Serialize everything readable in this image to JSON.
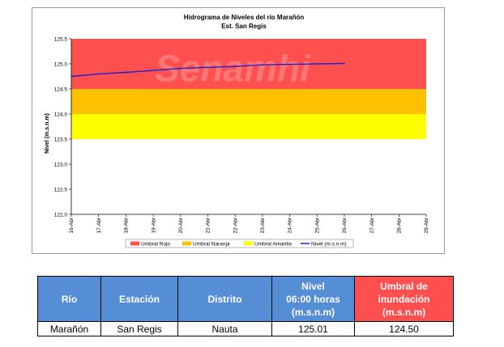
{
  "chart_data": {
    "type": "line",
    "title": "Hidrograma de Niveles del río Marañón",
    "subtitle": "Est. San Regis",
    "ylabel": "Nivel (m.s.n.m)",
    "watermark": "Senamhi",
    "ylim": [
      122.0,
      125.5
    ],
    "y_ticks": [
      "125.5",
      "125.0",
      "124.5",
      "124.0",
      "123.5",
      "123.0",
      "122.5",
      "122.0"
    ],
    "categories": [
      "16-Abr",
      "17-Abr",
      "18-Abr",
      "19-Abr",
      "20-Abr",
      "21-Abr",
      "22-Abr",
      "23-Abr",
      "24-Abr",
      "25-Abr",
      "26-Abr",
      "27-Abr",
      "28-Abr",
      "29-Abr"
    ],
    "bands": [
      {
        "name": "Umbral Rojo",
        "from": 124.5,
        "to": 125.5,
        "color": "#ff5050"
      },
      {
        "name": "Umbral Naranja",
        "from": 124.0,
        "to": 124.5,
        "color": "#ffc000"
      },
      {
        "name": "Umbral Amarilla",
        "from": 123.5,
        "to": 124.0,
        "color": "#ffff00"
      }
    ],
    "series": [
      {
        "name": "Nivel (m.s.n.m)",
        "color": "#1f1fcc",
        "values": [
          124.75,
          124.8,
          124.83,
          124.87,
          124.91,
          124.93,
          124.95,
          124.98,
          124.99,
          125.0,
          125.01,
          null,
          null,
          null
        ]
      }
    ],
    "legend": [
      "Umbral Rojo",
      "Umbral Naranja",
      "Umbral Amarilla",
      "Nivel (m.s.n.m)"
    ],
    "legend_position": "bottom",
    "grid": false
  },
  "table": {
    "headers": [
      "Río",
      "Estación",
      "Distrito",
      "Nivel 06:00 horas (m.s.n.m)",
      "Umbral de inundación (m.s.n.m)"
    ],
    "header_lines": [
      [
        "Río"
      ],
      [
        "Estación"
      ],
      [
        "Distrito"
      ],
      [
        "Nivel",
        "06:00 horas",
        "(m.s.n.m)"
      ],
      [
        "Umbral de",
        "inundación",
        "(m.s.n.m)"
      ]
    ],
    "header_colors": [
      "#558ed5",
      "#558ed5",
      "#558ed5",
      "#558ed5",
      "#ff4f4f"
    ],
    "row": [
      "Marañón",
      "San Regis",
      "Nauta",
      "125.01",
      "124.50"
    ]
  }
}
